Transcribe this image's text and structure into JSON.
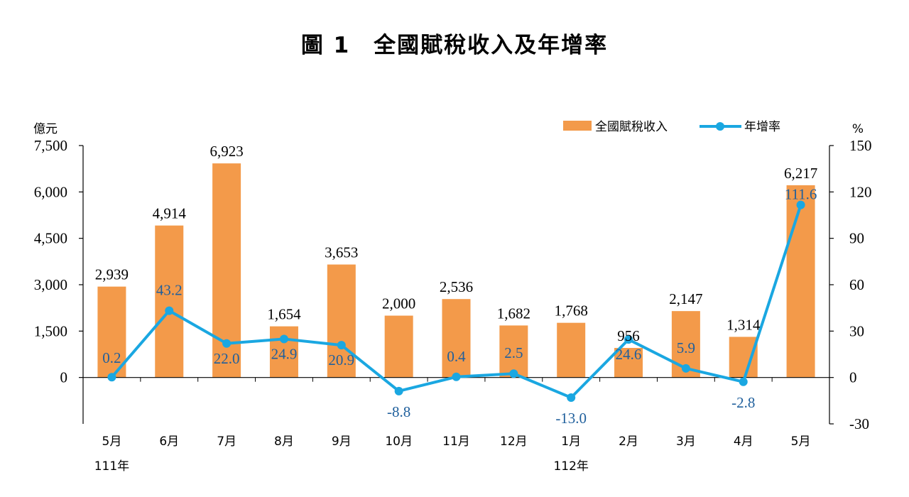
{
  "chart_title": "圖 1　全國賦稅收入及年增率",
  "chart_data": {
    "type": "bar",
    "title": "圖 1　全國賦稅收入及年增率",
    "categories": [
      "5月",
      "6月",
      "7月",
      "8月",
      "9月",
      "10月",
      "11月",
      "12月",
      "1月",
      "2月",
      "3月",
      "4月",
      "5月"
    ],
    "year_labels": [
      {
        "index": 0,
        "label": "111年"
      },
      {
        "index": 8,
        "label": "112年"
      }
    ],
    "y_left": {
      "unit": "億元",
      "lim": [
        0,
        7500
      ],
      "ticks": [
        0,
        1500,
        3000,
        4500,
        6000,
        7500
      ],
      "tick_labels": [
        "0",
        "1,500",
        "3,000",
        "4,500",
        "6,000",
        "7,500"
      ]
    },
    "y_right": {
      "unit": "%",
      "lim": [
        -30,
        150
      ],
      "ticks": [
        -30,
        0,
        30,
        60,
        90,
        120,
        150
      ],
      "tick_labels": [
        "-30",
        "0",
        "30",
        "60",
        "90",
        "120",
        "150"
      ]
    },
    "series": [
      {
        "name": "全國賦稅收入",
        "type": "bar",
        "axis": "left",
        "color": "#f39a4a",
        "values": [
          2939,
          4914,
          6923,
          1654,
          3653,
          2000,
          2536,
          1682,
          1768,
          956,
          2147,
          1314,
          6217
        ],
        "labels": [
          "2,939",
          "4,914",
          "6,923",
          "1,654",
          "3,653",
          "2,000",
          "2,536",
          "1,682",
          "1,768",
          "956",
          "2,147",
          "1,314",
          "6,217"
        ]
      },
      {
        "name": "年增率",
        "type": "line",
        "axis": "right",
        "color": "#1aa7e1",
        "values": [
          0.2,
          43.2,
          22.0,
          24.9,
          20.9,
          -8.8,
          0.4,
          2.5,
          -13.0,
          24.6,
          5.9,
          -2.8,
          111.6
        ],
        "labels": [
          "0.2",
          "43.2",
          "22.0",
          "24.9",
          "20.9",
          "-8.8",
          "0.4",
          "2.5",
          "-13.0",
          "24.6",
          "5.9",
          "-2.8",
          "111.6"
        ]
      }
    ],
    "legend": "top-right",
    "grid": false
  }
}
